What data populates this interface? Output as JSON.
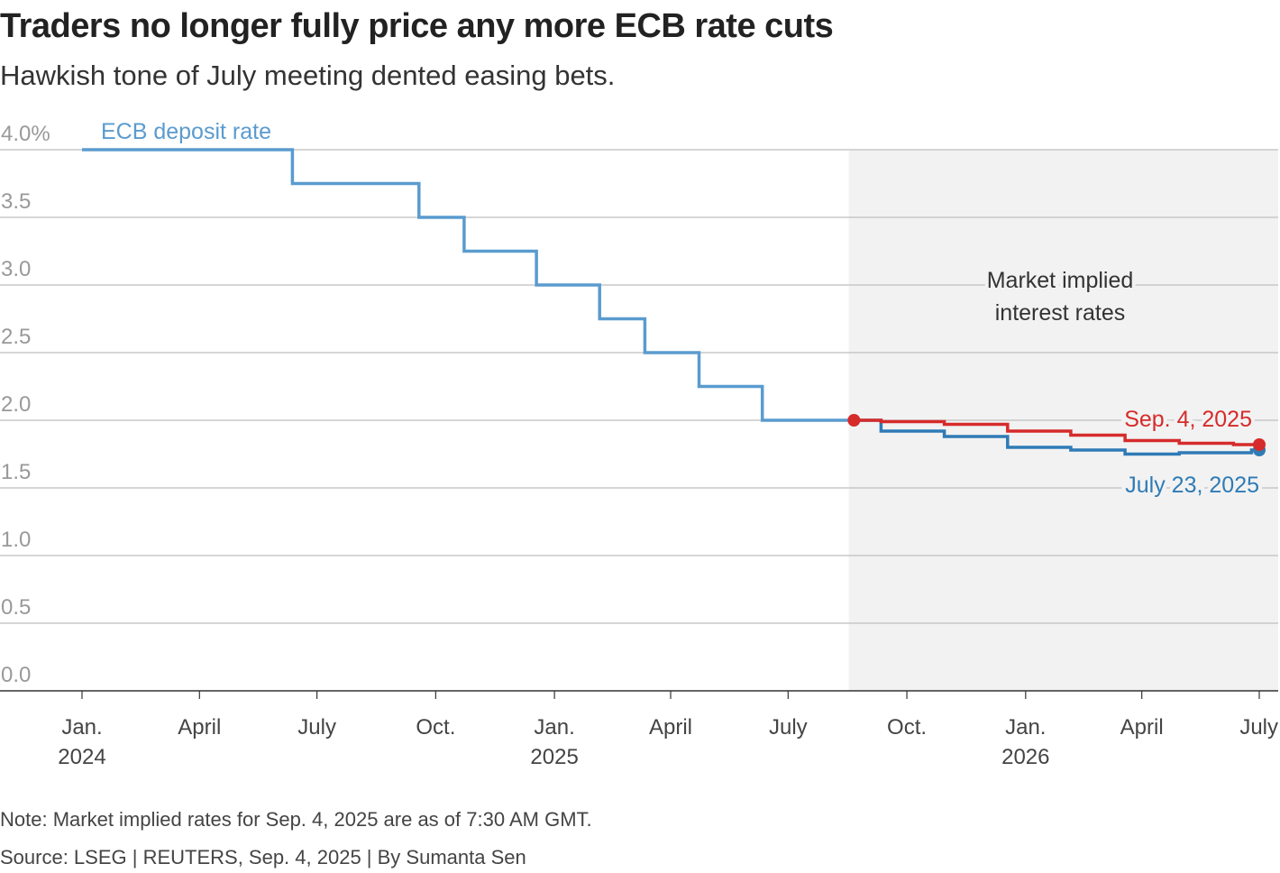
{
  "header": {
    "title": "Traders no longer fully price any more ECB rate cuts",
    "subtitle": "Hawkish tone of July meeting dented easing bets."
  },
  "footer": {
    "note": "Note: Market implied rates for Sep. 4, 2025 are as of 7:30 AM GMT.",
    "source": "Source: LSEG | REUTERS, Sep. 4, 2025 | By Sumanta Sen"
  },
  "colors": {
    "deposit": "#5a9bcf",
    "sep": "#d62b2b",
    "july": "#2f7bb6",
    "shade": "#f2f2f2",
    "grid": "#c8c8c8",
    "axis": "#333333"
  },
  "chart_data": {
    "type": "line",
    "step": true,
    "ylim": [
      0,
      4.0
    ],
    "xlim": [
      "2024-01-01",
      "2026-07-01"
    ],
    "y_ticks": [
      {
        "value": 4.0,
        "label": "4.0%"
      },
      {
        "value": 3.5,
        "label": "3.5"
      },
      {
        "value": 3.0,
        "label": "3.0"
      },
      {
        "value": 2.5,
        "label": "2.5"
      },
      {
        "value": 2.0,
        "label": "2.0"
      },
      {
        "value": 1.5,
        "label": "1.5"
      },
      {
        "value": 1.0,
        "label": "1.0"
      },
      {
        "value": 0.5,
        "label": "0.5"
      },
      {
        "value": 0.0,
        "label": "0.0"
      }
    ],
    "x_ticks": [
      {
        "date": "2024-01-01",
        "label": "Jan.",
        "year": "2024"
      },
      {
        "date": "2024-04-01",
        "label": "April",
        "year": ""
      },
      {
        "date": "2024-07-01",
        "label": "July",
        "year": ""
      },
      {
        "date": "2024-10-01",
        "label": "Oct.",
        "year": ""
      },
      {
        "date": "2025-01-01",
        "label": "Jan.",
        "year": "2025"
      },
      {
        "date": "2025-04-01",
        "label": "April",
        "year": ""
      },
      {
        "date": "2025-07-01",
        "label": "July",
        "year": ""
      },
      {
        "date": "2025-10-01",
        "label": "Oct.",
        "year": ""
      },
      {
        "date": "2026-01-01",
        "label": "Jan.",
        "year": "2026"
      },
      {
        "date": "2026-04-01",
        "label": "April",
        "year": ""
      },
      {
        "date": "2026-07-01",
        "label": "July",
        "year": ""
      }
    ],
    "shaded_region": {
      "start": "2025-08-17",
      "end": "2026-07-31",
      "label_line1": "Market implied",
      "label_line2": "interest rates"
    },
    "series": [
      {
        "name": "ECB deposit rate",
        "key": "deposit",
        "points": [
          [
            "2024-01-01",
            4.0
          ],
          [
            "2024-06-12",
            4.0
          ],
          [
            "2024-06-12",
            3.75
          ],
          [
            "2024-09-18",
            3.75
          ],
          [
            "2024-09-18",
            3.5
          ],
          [
            "2024-10-23",
            3.5
          ],
          [
            "2024-10-23",
            3.25
          ],
          [
            "2024-12-18",
            3.25
          ],
          [
            "2024-12-18",
            3.0
          ],
          [
            "2025-02-05",
            3.0
          ],
          [
            "2025-02-05",
            2.75
          ],
          [
            "2025-03-12",
            2.75
          ],
          [
            "2025-03-12",
            2.5
          ],
          [
            "2025-04-23",
            2.5
          ],
          [
            "2025-04-23",
            2.25
          ],
          [
            "2025-06-11",
            2.25
          ],
          [
            "2025-06-11",
            2.0
          ],
          [
            "2025-08-21",
            2.0
          ]
        ]
      },
      {
        "name": "Sep. 4, 2025",
        "key": "sep",
        "points": [
          [
            "2025-08-21",
            2.0
          ],
          [
            "2025-09-11",
            2.0
          ],
          [
            "2025-09-11",
            1.99
          ],
          [
            "2025-10-30",
            1.99
          ],
          [
            "2025-10-30",
            1.97
          ],
          [
            "2025-12-18",
            1.97
          ],
          [
            "2025-12-18",
            1.92
          ],
          [
            "2026-02-05",
            1.92
          ],
          [
            "2026-02-05",
            1.89
          ],
          [
            "2026-03-19",
            1.89
          ],
          [
            "2026-03-19",
            1.85
          ],
          [
            "2026-04-30",
            1.85
          ],
          [
            "2026-04-30",
            1.83
          ],
          [
            "2026-06-11",
            1.83
          ],
          [
            "2026-06-11",
            1.82
          ],
          [
            "2026-07-01",
            1.82
          ]
        ]
      },
      {
        "name": "July 23, 2025",
        "key": "july",
        "points": [
          [
            "2025-08-21",
            2.0
          ],
          [
            "2025-09-11",
            2.0
          ],
          [
            "2025-09-11",
            1.92
          ],
          [
            "2025-10-30",
            1.92
          ],
          [
            "2025-10-30",
            1.88
          ],
          [
            "2025-12-18",
            1.88
          ],
          [
            "2025-12-18",
            1.8
          ],
          [
            "2026-02-05",
            1.8
          ],
          [
            "2026-02-05",
            1.78
          ],
          [
            "2026-03-19",
            1.78
          ],
          [
            "2026-03-19",
            1.75
          ],
          [
            "2026-04-30",
            1.75
          ],
          [
            "2026-04-30",
            1.76
          ],
          [
            "2026-06-25",
            1.76
          ],
          [
            "2026-06-25",
            1.78
          ],
          [
            "2026-07-01",
            1.78
          ]
        ]
      }
    ]
  }
}
